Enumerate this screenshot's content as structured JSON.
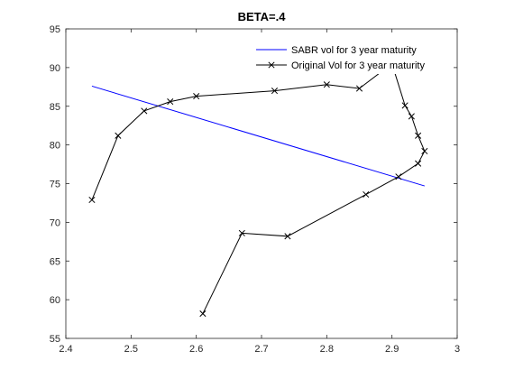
{
  "chart_data": {
    "type": "line",
    "title": "BETA=.4",
    "xlabel": "",
    "ylabel": "",
    "xlim": [
      2.4,
      3.0
    ],
    "ylim": [
      55,
      95
    ],
    "xticks": [
      2.4,
      2.5,
      2.6,
      2.7,
      2.8,
      2.9,
      3.0
    ],
    "xtick_labels": [
      "2.4",
      "2.5",
      "2.6",
      "2.7",
      "2.8",
      "2.9",
      "3"
    ],
    "yticks": [
      55,
      60,
      65,
      70,
      75,
      80,
      85,
      90,
      95
    ],
    "ytick_labels": [
      "55",
      "60",
      "65",
      "70",
      "75",
      "80",
      "85",
      "90",
      "95"
    ],
    "grid": false,
    "legend_position": "top-right",
    "series": [
      {
        "name": "SABR vol for 3 year maturity",
        "color": "#0000ff",
        "marker": "none",
        "x": [
          2.44,
          2.95
        ],
        "y": [
          87.6,
          74.7
        ]
      },
      {
        "name": "Original Vol for 3 year maturity",
        "color": "#000000",
        "marker": "x",
        "x": [
          2.44,
          2.48,
          2.52,
          2.56,
          2.6,
          2.72,
          2.8,
          2.85,
          2.9,
          2.92,
          2.93,
          2.94,
          2.95,
          2.94,
          2.91,
          2.86,
          2.74,
          2.67,
          2.61
        ],
        "y": [
          72.9,
          81.2,
          84.4,
          85.6,
          86.3,
          87.0,
          87.8,
          87.3,
          90.5,
          85.1,
          83.7,
          81.2,
          79.2,
          77.6,
          75.9,
          73.6,
          68.2,
          68.6,
          58.2
        ]
      }
    ]
  }
}
